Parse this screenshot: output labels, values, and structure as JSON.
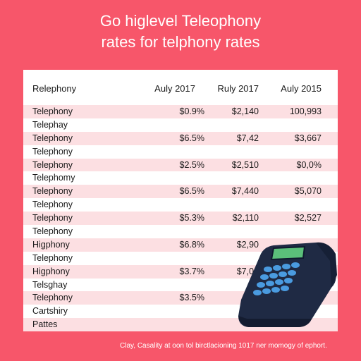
{
  "title": {
    "line1": "Go higlevel Teleophony",
    "line2": "rates for telphony rates"
  },
  "table": {
    "headers": [
      "Relephony",
      "Auly 2017",
      "Ruly 2017",
      "Auly 2015"
    ],
    "rows": [
      {
        "label": "Telephony",
        "v1": "$0.9%",
        "v2": "$2,140",
        "v3": "100,993",
        "shade": true
      },
      {
        "label": "Telephay",
        "v1": "",
        "v2": "",
        "v3": "",
        "shade": false
      },
      {
        "label": "Telephony",
        "v1": "$6.5%",
        "v2": "$7,42",
        "v3": "$3,667",
        "shade": true
      },
      {
        "label": "Telephony",
        "v1": "",
        "v2": "",
        "v3": "",
        "shade": false
      },
      {
        "label": "Telephony",
        "v1": "$2.5%",
        "v2": "$2,510",
        "v3": "$0,0%",
        "shade": true
      },
      {
        "label": "Telephomy",
        "v1": "",
        "v2": "",
        "v3": "",
        "shade": false
      },
      {
        "label": "Telephony",
        "v1": "$6.5%",
        "v2": "$7,440",
        "v3": "$5,070",
        "shade": true
      },
      {
        "label": "Telephony",
        "v1": "",
        "v2": "",
        "v3": "",
        "shade": false
      },
      {
        "label": "Telephony",
        "v1": "$5.3%",
        "v2": "$2,110",
        "v3": "$2,527",
        "shade": true
      },
      {
        "label": "Telephony",
        "v1": "",
        "v2": "",
        "v3": "",
        "shade": false
      },
      {
        "label": "Higphony",
        "v1": "$6.8%",
        "v2": "$2,90",
        "v3": "",
        "shade": true
      },
      {
        "label": "Telephony",
        "v1": "",
        "v2": "",
        "v3": "",
        "shade": false
      },
      {
        "label": "Higphony",
        "v1": "$3.7%",
        "v2": "$7,00",
        "v3": "",
        "shade": true
      },
      {
        "label": "Telsghay",
        "v1": "",
        "v2": "",
        "v3": "",
        "shade": false
      },
      {
        "label": "Telephony",
        "v1": "$3.5%",
        "v2": "$7,",
        "v3": "",
        "shade": true
      },
      {
        "label": "Cartshiry",
        "v1": "",
        "v2": "",
        "v3": "",
        "shade": false
      },
      {
        "label": "Pattes",
        "v1": "",
        "v2": "",
        "v3": "",
        "shade": true
      }
    ]
  },
  "footer": "Clay, Casality at oon tol birctlacioning 1017 ner momogy of ephort.",
  "colors": {
    "background": "#f7566a",
    "panel": "#ffffff",
    "row_shade": "#fcdfe2",
    "phone_body": "#1f2a44",
    "phone_keys": "#4a9be0",
    "phone_screen": "#5bbf7a"
  },
  "illustration": "desk-telephone-icon"
}
